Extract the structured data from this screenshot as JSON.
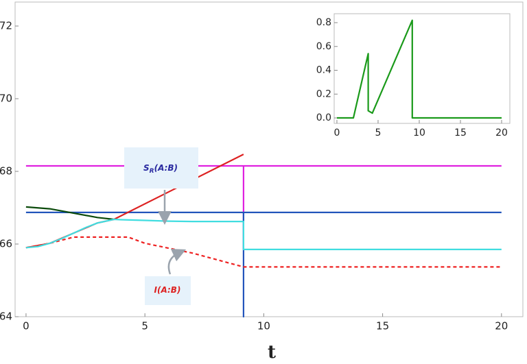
{
  "chart_data": [
    {
      "type": "line",
      "x_label": "t",
      "xlim": [
        -0.46,
        20.9
      ],
      "ylim": [
        64,
        72.66
      ],
      "xticks": [
        0,
        5,
        10,
        15,
        20
      ],
      "yticks": [
        64,
        66,
        68,
        70,
        72
      ],
      "series": [
        {
          "color": "#e020e0",
          "x": [
            0,
            9.15,
            9.15,
            9.15,
            20
          ],
          "values": [
            68.15,
            68.15,
            65.85,
            68.15,
            68.15
          ]
        },
        {
          "color": "#2255bb",
          "x": [
            0,
            9.15,
            9.15,
            9.15,
            20
          ],
          "values": [
            66.87,
            66.87,
            64,
            66.87,
            66.87
          ]
        },
        {
          "color": "#0a4a0a",
          "x": [
            0,
            1,
            2,
            3,
            3.7
          ],
          "values": [
            67.02,
            66.97,
            66.85,
            66.73,
            66.68
          ]
        },
        {
          "color": "#dd2222",
          "x": [
            0,
            1,
            2,
            3,
            3.7,
            9.15
          ],
          "values": [
            65.9,
            66.02,
            66.3,
            66.58,
            66.68,
            68.47
          ]
        },
        {
          "color": "#ee2222",
          "dash": true,
          "x": [
            0,
            1,
            2,
            4.3,
            5,
            7,
            9.15,
            20
          ],
          "values": [
            65.9,
            66.02,
            66.19,
            66.19,
            66.02,
            65.75,
            65.37,
            65.37
          ]
        },
        {
          "color": "#40dde0",
          "x": [
            0,
            0.5,
            1,
            1.5,
            2,
            2.5,
            3,
            3.7,
            4,
            5,
            6,
            7,
            8,
            9.15,
            9.15,
            20
          ],
          "values": [
            65.9,
            65.93,
            66.02,
            66.15,
            66.3,
            66.45,
            66.58,
            66.68,
            66.67,
            66.65,
            66.63,
            66.62,
            66.62,
            66.62,
            65.85,
            65.85
          ]
        }
      ],
      "annotations": [
        {
          "text": "S",
          "sub": "R",
          "rest": "(A:B)",
          "color": "#2a2aa0"
        },
        {
          "text": "I",
          "rest": "(A:B)",
          "color": "#dd2222"
        }
      ]
    },
    {
      "type": "line",
      "xlim": [
        -0.33,
        21
      ],
      "ylim": [
        -0.046,
        0.875
      ],
      "xticks": [
        0,
        5,
        10,
        15,
        20
      ],
      "yticks": [
        {
          "value": 0,
          "label": "0.0"
        },
        {
          "value": 0.2,
          "label": "0.2"
        },
        {
          "value": 0.4,
          "label": "0.4"
        },
        {
          "value": 0.6,
          "label": "0.6"
        },
        {
          "value": 0.8,
          "label": "0.8"
        }
      ],
      "series": [
        {
          "color": "#1a9a1a",
          "x": [
            0,
            2,
            3.8,
            3.8,
            4.3,
            9.15,
            9.15,
            20
          ],
          "values": [
            0,
            0,
            0.54,
            0.06,
            0.04,
            0.82,
            0,
            0
          ]
        }
      ]
    }
  ]
}
